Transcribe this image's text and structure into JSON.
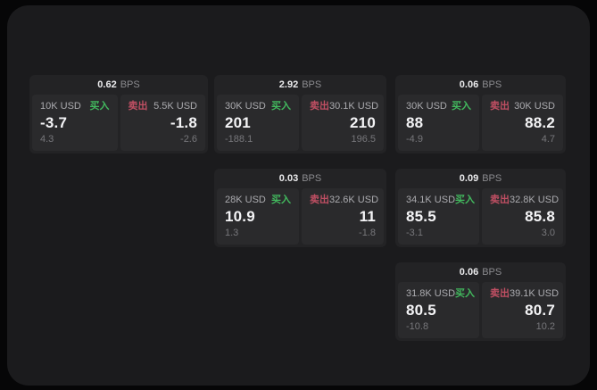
{
  "labels": {
    "bps_unit": "BPS",
    "buy_label": "买入",
    "sell_label": "卖出"
  },
  "colors": {
    "buy": "#42b95e",
    "sell": "#c04f63",
    "panel_bg": "#1b1b1d",
    "card_bg": "#232325",
    "pane_bg": "#2a2a2c"
  },
  "cards": [
    {
      "bps": "0.62",
      "buy": {
        "amount": "10K USD",
        "value": "-3.7",
        "sub": "4.3"
      },
      "sell": {
        "amount": "5.5K USD",
        "value": "-1.8",
        "sub": "-2.6"
      }
    },
    {
      "bps": "2.92",
      "buy": {
        "amount": "30K USD",
        "value": "201",
        "sub": "-188.1"
      },
      "sell": {
        "amount": "30.1K USD",
        "value": "210",
        "sub": "196.5"
      }
    },
    {
      "bps": "0.06",
      "buy": {
        "amount": "30K USD",
        "value": "88",
        "sub": "-4.9"
      },
      "sell": {
        "amount": "30K USD",
        "value": "88.2",
        "sub": "4.7"
      }
    },
    {
      "bps": "0.03",
      "buy": {
        "amount": "28K USD",
        "value": "10.9",
        "sub": "1.3"
      },
      "sell": {
        "amount": "32.6K USD",
        "value": "11",
        "sub": "-1.8"
      }
    },
    {
      "bps": "0.09",
      "buy": {
        "amount": "34.1K USD",
        "value": "85.5",
        "sub": "-3.1"
      },
      "sell": {
        "amount": "32.8K USD",
        "value": "85.8",
        "sub": "3.0"
      }
    },
    {
      "bps": "0.06",
      "buy": {
        "amount": "31.8K USD",
        "value": "80.5",
        "sub": "-10.8"
      },
      "sell": {
        "amount": "39.1K USD",
        "value": "80.7",
        "sub": "10.2"
      }
    }
  ]
}
